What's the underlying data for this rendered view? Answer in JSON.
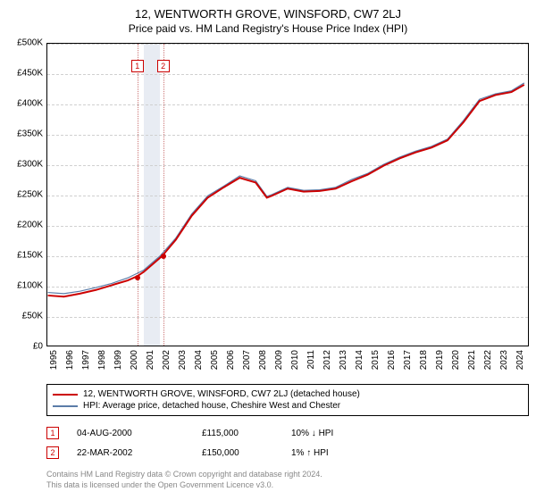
{
  "title": "12, WENTWORTH GROVE, WINSFORD, CW7 2LJ",
  "subtitle": "Price paid vs. HM Land Registry's House Price Index (HPI)",
  "chart": {
    "type": "line",
    "background_color": "#ffffff",
    "grid_color": "#d0d0d0",
    "border_color": "#000000",
    "ylim": [
      0,
      500000
    ],
    "ytick_step": 50000,
    "yticks": [
      "£0",
      "£50K",
      "£100K",
      "£150K",
      "£200K",
      "£250K",
      "£300K",
      "£350K",
      "£400K",
      "£450K",
      "£500K"
    ],
    "xlim": [
      1995,
      2025
    ],
    "xticks": [
      "1995",
      "1996",
      "1997",
      "1998",
      "1999",
      "2000",
      "2001",
      "2002",
      "2003",
      "2004",
      "2005",
      "2006",
      "2007",
      "2008",
      "2009",
      "2010",
      "2011",
      "2012",
      "2013",
      "2014",
      "2015",
      "2016",
      "2017",
      "2018",
      "2019",
      "2020",
      "2021",
      "2022",
      "2023",
      "2024"
    ],
    "band": {
      "x_start": 2001.0,
      "x_end": 2002.0,
      "color": "#e8ecf3"
    },
    "vlines": [
      {
        "x": 2000.6,
        "color": "#cc7777"
      },
      {
        "x": 2002.2,
        "color": "#cc7777"
      }
    ],
    "markers": [
      {
        "label": "1",
        "x": 2000.6,
        "y_top": 18
      },
      {
        "label": "2",
        "x": 2002.2,
        "y_top": 18
      }
    ],
    "points": [
      {
        "x": 2000.6,
        "y": 115000,
        "color": "#cc0000"
      },
      {
        "x": 2002.2,
        "y": 150000,
        "color": "#cc0000"
      }
    ],
    "series": [
      {
        "name": "property",
        "color": "#cc0000",
        "width": 2,
        "data": [
          [
            1995,
            83000
          ],
          [
            1996,
            81000
          ],
          [
            1997,
            86000
          ],
          [
            1998,
            92000
          ],
          [
            1999,
            100000
          ],
          [
            2000,
            108000
          ],
          [
            2000.6,
            115000
          ],
          [
            2001,
            122000
          ],
          [
            2002,
            145000
          ],
          [
            2002.2,
            150000
          ],
          [
            2003,
            175000
          ],
          [
            2004,
            215000
          ],
          [
            2005,
            245000
          ],
          [
            2006,
            262000
          ],
          [
            2007,
            278000
          ],
          [
            2008,
            270000
          ],
          [
            2008.7,
            245000
          ],
          [
            2009,
            248000
          ],
          [
            2010,
            260000
          ],
          [
            2011,
            255000
          ],
          [
            2012,
            256000
          ],
          [
            2013,
            260000
          ],
          [
            2014,
            272000
          ],
          [
            2015,
            283000
          ],
          [
            2016,
            298000
          ],
          [
            2017,
            310000
          ],
          [
            2018,
            320000
          ],
          [
            2019,
            328000
          ],
          [
            2020,
            340000
          ],
          [
            2021,
            370000
          ],
          [
            2022,
            405000
          ],
          [
            2023,
            415000
          ],
          [
            2024,
            420000
          ],
          [
            2024.8,
            432000
          ]
        ]
      },
      {
        "name": "hpi",
        "color": "#5b7ca8",
        "width": 1.2,
        "data": [
          [
            1995,
            88000
          ],
          [
            1996,
            86000
          ],
          [
            1997,
            90000
          ],
          [
            1998,
            96000
          ],
          [
            1999,
            103000
          ],
          [
            2000,
            112000
          ],
          [
            2001,
            125000
          ],
          [
            2002,
            148000
          ],
          [
            2003,
            178000
          ],
          [
            2004,
            218000
          ],
          [
            2005,
            248000
          ],
          [
            2006,
            264000
          ],
          [
            2007,
            281000
          ],
          [
            2008,
            273000
          ],
          [
            2008.7,
            247000
          ],
          [
            2009,
            250000
          ],
          [
            2010,
            262000
          ],
          [
            2011,
            257000
          ],
          [
            2012,
            258000
          ],
          [
            2013,
            262000
          ],
          [
            2014,
            275000
          ],
          [
            2015,
            285000
          ],
          [
            2016,
            300000
          ],
          [
            2017,
            312000
          ],
          [
            2018,
            322000
          ],
          [
            2019,
            330000
          ],
          [
            2020,
            342000
          ],
          [
            2021,
            373000
          ],
          [
            2022,
            408000
          ],
          [
            2023,
            417000
          ],
          [
            2024,
            422000
          ],
          [
            2024.8,
            435000
          ]
        ]
      }
    ]
  },
  "legend": {
    "items": [
      {
        "color": "#cc0000",
        "label": "12, WENTWORTH GROVE, WINSFORD, CW7 2LJ (detached house)"
      },
      {
        "color": "#5b7ca8",
        "label": "HPI: Average price, detached house, Cheshire West and Chester"
      }
    ]
  },
  "transactions": [
    {
      "marker": "1",
      "date": "04-AUG-2000",
      "price": "£115,000",
      "pct": "10%",
      "arrow": "↓",
      "suffix": "HPI"
    },
    {
      "marker": "2",
      "date": "22-MAR-2002",
      "price": "£150,000",
      "pct": "1%",
      "arrow": "↑",
      "suffix": "HPI"
    }
  ],
  "attribution": {
    "line1": "Contains HM Land Registry data © Crown copyright and database right 2024.",
    "line2": "This data is licensed under the Open Government Licence v3.0."
  }
}
